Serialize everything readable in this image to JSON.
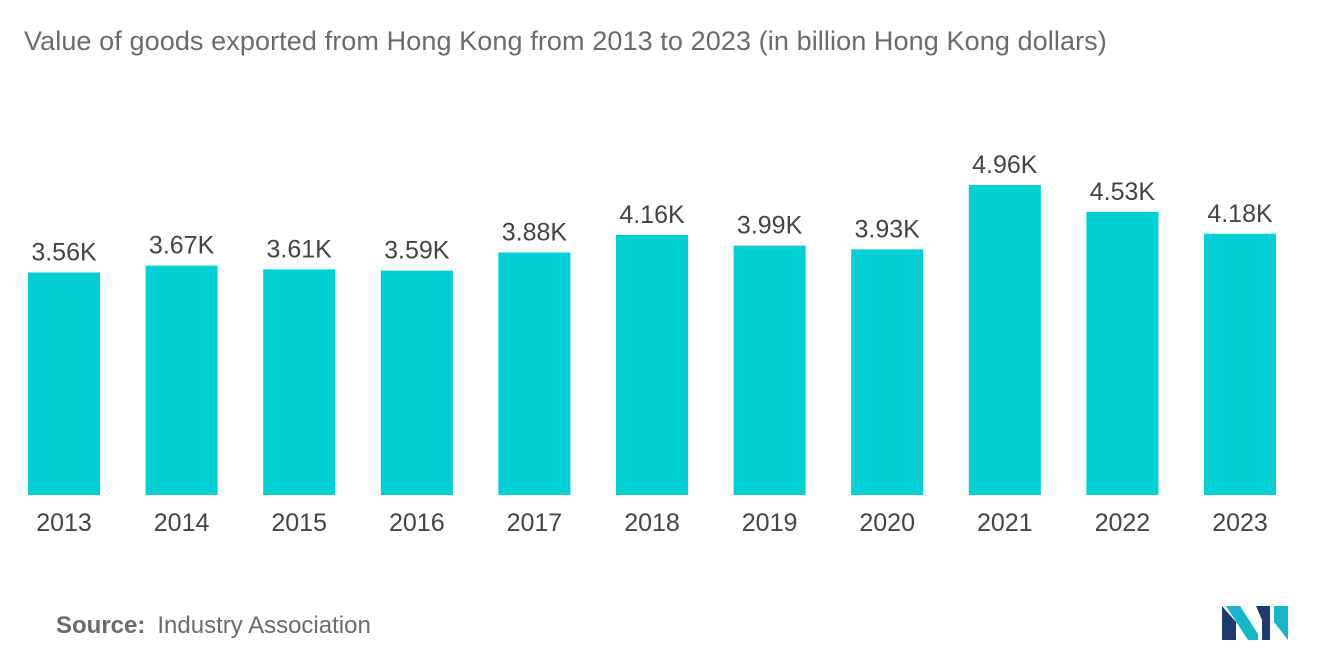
{
  "title": "Value of goods exported from Hong Kong from 2013 to 2023 (in billion Hong Kong dollars)",
  "chart_data": {
    "type": "bar",
    "title": "Value of goods exported from Hong Kong from 2013 to 2023 (in billion Hong Kong dollars)",
    "categories": [
      "2013",
      "2014",
      "2015",
      "2016",
      "2017",
      "2018",
      "2019",
      "2020",
      "2021",
      "2022",
      "2023"
    ],
    "values": [
      3560,
      3670,
      3610,
      3590,
      3880,
      4160,
      3990,
      3930,
      4960,
      4530,
      4180
    ],
    "data_labels": [
      "3.56K",
      "3.67K",
      "3.61K",
      "3.59K",
      "3.88K",
      "4.16K",
      "3.99K",
      "3.93K",
      "4.96K",
      "4.53K",
      "4.18K"
    ],
    "xlabel": "",
    "ylabel": "",
    "ylim": [
      0,
      4960
    ],
    "grid": false,
    "bar_color": "#00cfd3"
  },
  "source": {
    "label": "Source:",
    "value": "Industry Association"
  },
  "logo": {
    "icon": "mordor-intelligence-logo-icon",
    "colors": [
      "#1e3a6e",
      "#16b5c9"
    ]
  }
}
